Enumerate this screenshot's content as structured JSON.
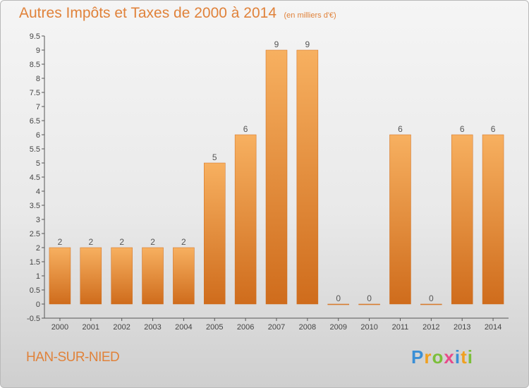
{
  "title": "Autres Impôts et Taxes de 2000 à 2014",
  "subtitle": "(en milliers d'€)",
  "commune": "HAN-SUR-NIED",
  "logo": {
    "letters": [
      "P",
      "r",
      "o",
      "x",
      "i",
      "t",
      "i"
    ],
    "colors": [
      "#3a8fd6",
      "#f0a020",
      "#7bbf3a",
      "#e84a8a",
      "#3a8fd6",
      "#f0a020",
      "#7bbf3a"
    ]
  },
  "colors": {
    "bar": "#f0923a",
    "bar_light": "#f7b060",
    "bar_dark": "#cf6c1c",
    "text": "#e0823a"
  },
  "chart_data": {
    "type": "bar",
    "categories": [
      "2000",
      "2001",
      "2002",
      "2003",
      "2004",
      "2005",
      "2006",
      "2007",
      "2008",
      "2009",
      "2010",
      "2011",
      "2012",
      "2013",
      "2014"
    ],
    "values": [
      2,
      2,
      2,
      2,
      2,
      5,
      6,
      9,
      9,
      0,
      0,
      6,
      0,
      6,
      6
    ],
    "data_labels": [
      "2",
      "2",
      "2",
      "2",
      "2",
      "5",
      "6",
      "9",
      "9",
      "0",
      "0",
      "6",
      "0",
      "6",
      "6"
    ],
    "y_ticks": [
      "-0.5",
      "0",
      "0.5",
      "1",
      "1.5",
      "2",
      "2.5",
      "3",
      "3.5",
      "4",
      "4.5",
      "5",
      "5.5",
      "6",
      "6.5",
      "7",
      "7.5",
      "8",
      "8.5",
      "9",
      "9.5"
    ],
    "ylim": [
      -0.5,
      9.5
    ],
    "grid": false,
    "xlabel": "",
    "ylabel": ""
  }
}
